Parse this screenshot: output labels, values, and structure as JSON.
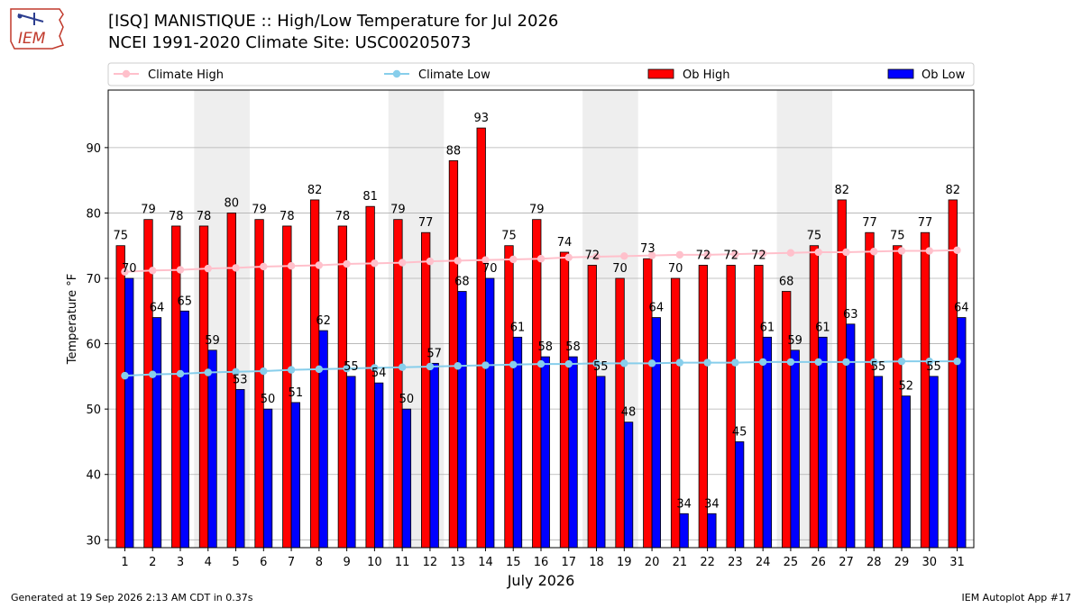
{
  "header": {
    "title_line1": "[ISQ] MANISTIQUE :: High/Low Temperature for Jul 2026",
    "title_line2": "NCEI 1991-2020 Climate Site: USC00205073",
    "logo_text": "IEM"
  },
  "footer": {
    "generated": "Generated at 19 Sep 2026 2:13 AM CDT in 0.37s",
    "app": "IEM Autoplot App #17"
  },
  "colors": {
    "ob_high": "#ff0000",
    "ob_low": "#0000ff",
    "climate_high": "#ffc0cb",
    "climate_low": "#87ceeb",
    "weekend_shade": "#eeeeee",
    "grid": "#b0b0b0"
  },
  "chart_data": {
    "type": "bar",
    "xlabel": "July 2026",
    "ylabel": "Temperature °F",
    "ylim": [
      28.8,
      98.8
    ],
    "yticks": [
      30,
      40,
      50,
      60,
      70,
      80,
      90
    ],
    "grid": "horizontal",
    "legend_placement": "top",
    "categories": [
      "1",
      "2",
      "3",
      "4",
      "5",
      "6",
      "7",
      "8",
      "9",
      "10",
      "11",
      "12",
      "13",
      "14",
      "15",
      "16",
      "17",
      "18",
      "19",
      "20",
      "21",
      "22",
      "23",
      "24",
      "25",
      "26",
      "27",
      "28",
      "29",
      "30",
      "31"
    ],
    "shaded_days": [
      [
        4,
        5
      ],
      [
        11,
        12
      ],
      [
        18,
        19
      ],
      [
        25,
        26
      ]
    ],
    "series": [
      {
        "name": "Ob High",
        "kind": "bar",
        "values": [
          75,
          79,
          78,
          78,
          80,
          79,
          78,
          82,
          78,
          81,
          79,
          77,
          88,
          93,
          75,
          79,
          74,
          72,
          70,
          73,
          70,
          72,
          72,
          72,
          68,
          75,
          82,
          77,
          75,
          77,
          82
        ]
      },
      {
        "name": "Ob Low",
        "kind": "bar",
        "values": [
          70,
          64,
          65,
          59,
          53,
          50,
          51,
          62,
          55,
          54,
          50,
          57,
          68,
          70,
          61,
          58,
          58,
          55,
          48,
          64,
          34,
          34,
          45,
          61,
          59,
          61,
          63,
          55,
          52,
          55,
          64
        ]
      },
      {
        "name": "Climate High",
        "kind": "line",
        "values": [
          71.0,
          71.2,
          71.3,
          71.5,
          71.6,
          71.8,
          71.9,
          72.0,
          72.2,
          72.3,
          72.4,
          72.6,
          72.7,
          72.8,
          72.9,
          73.0,
          73.2,
          73.3,
          73.4,
          73.5,
          73.6,
          73.6,
          73.7,
          73.8,
          73.9,
          74.0,
          74.0,
          74.1,
          74.2,
          74.2,
          74.3
        ]
      },
      {
        "name": "Climate Low",
        "kind": "line",
        "values": [
          55.1,
          55.3,
          55.4,
          55.6,
          55.7,
          55.8,
          56.0,
          56.1,
          56.2,
          56.3,
          56.4,
          56.5,
          56.6,
          56.7,
          56.8,
          56.9,
          56.9,
          57.0,
          57.0,
          57.0,
          57.1,
          57.1,
          57.1,
          57.2,
          57.2,
          57.2,
          57.2,
          57.2,
          57.3,
          57.3,
          57.3
        ]
      }
    ]
  }
}
